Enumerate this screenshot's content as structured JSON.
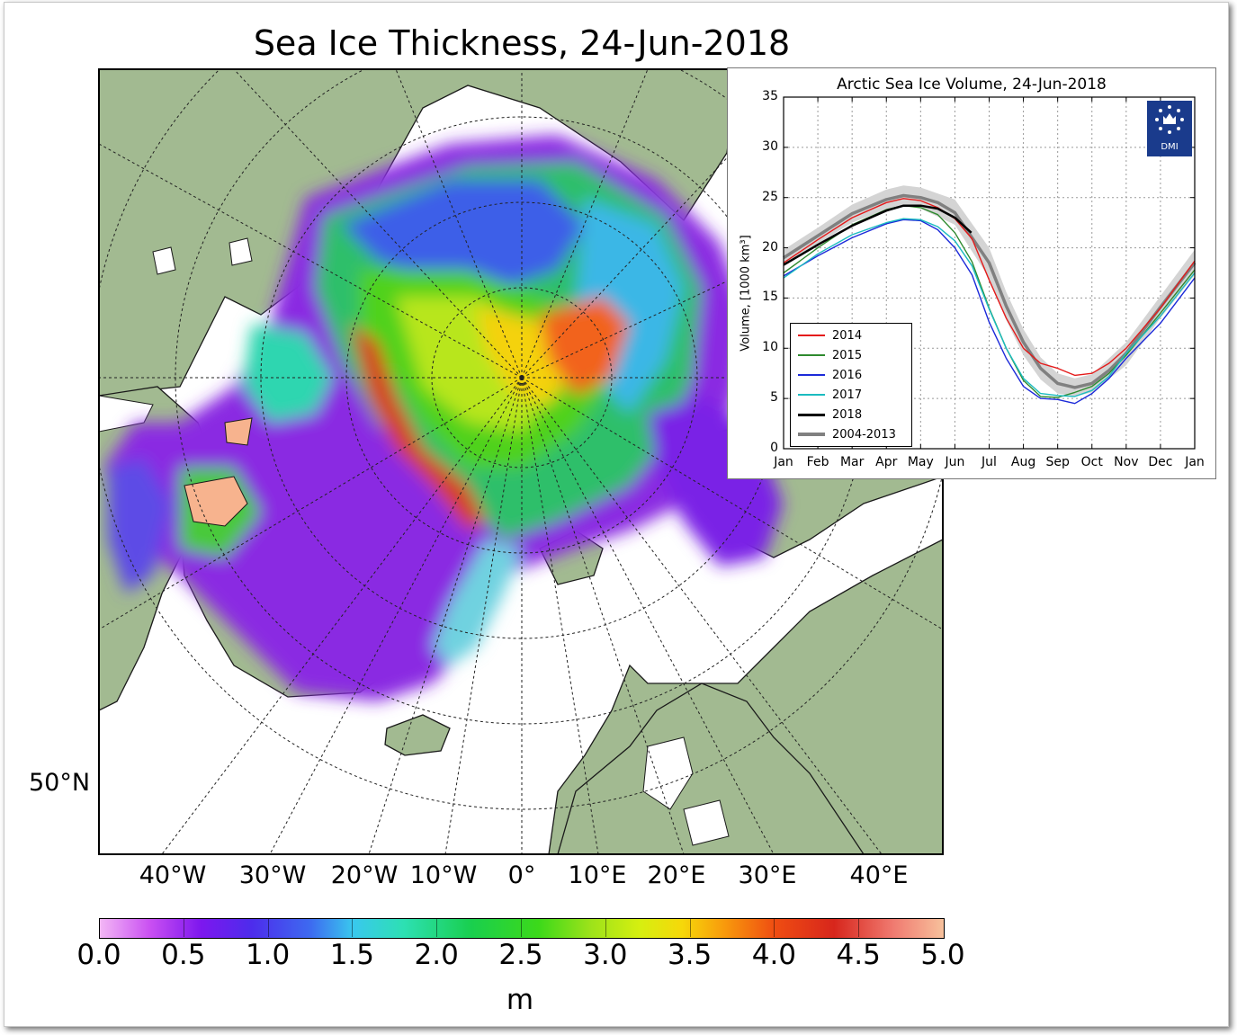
{
  "map": {
    "title": "Sea Ice Thickness, 24-Jun-2018",
    "longitude_labels": [
      "40°W",
      "30°W",
      "20°W",
      "10°W",
      "0°",
      "10°E",
      "20°E",
      "30°E",
      "40°E"
    ],
    "latitude_label": "50°N",
    "colors": {
      "land": "#a2ba91",
      "ocean": "#ffffff"
    }
  },
  "colorbar": {
    "ticks": [
      "0.0",
      "0.5",
      "1.0",
      "1.5",
      "2.0",
      "2.5",
      "3.0",
      "3.5",
      "4.0",
      "4.5",
      "5.0"
    ],
    "unit": "m"
  },
  "chart_data": {
    "type": "line",
    "title": "Arctic Sea Ice Volume, 24-Jun-2018",
    "xlabel": "",
    "ylabel": "Volume, [1000 km³]",
    "x_ticks": [
      "Jan",
      "Feb",
      "Mar",
      "Apr",
      "May",
      "Jun",
      "Jul",
      "Aug",
      "Sep",
      "Oct",
      "Nov",
      "Dec",
      "Jan"
    ],
    "y_ticks": [
      "0",
      "5",
      "10",
      "15",
      "20",
      "25",
      "30",
      "35"
    ],
    "ylim": [
      0,
      35
    ],
    "xlim": [
      0,
      12
    ],
    "grid": true,
    "legend_position": "lower-left",
    "logo_text": "DMI",
    "band": {
      "name": "2004-2013",
      "x": [
        0,
        1,
        2,
        3,
        3.5,
        4,
        5,
        6,
        6.5,
        7,
        7.5,
        8,
        8.5,
        9,
        10,
        11,
        12
      ],
      "lower": [
        18.2,
        20.4,
        22.5,
        23.8,
        24.2,
        23.9,
        22.3,
        17.0,
        12.8,
        9.3,
        6.9,
        5.5,
        5.2,
        5.6,
        8.3,
        13.0,
        17.3
      ],
      "upper": [
        19.8,
        22.0,
        24.3,
        25.8,
        26.2,
        26.0,
        24.8,
        20.0,
        15.6,
        11.9,
        9.1,
        7.5,
        7.0,
        7.4,
        10.6,
        15.2,
        19.8
      ]
    },
    "series": [
      {
        "name": "2014",
        "color": "#e41a1a",
        "x": [
          0,
          1,
          2,
          3,
          3.5,
          4,
          4.5,
          5,
          5.5,
          6,
          6.5,
          7,
          7.5,
          8,
          8.5,
          9,
          9.5,
          10,
          11,
          12
        ],
        "values": [
          18.5,
          20.8,
          23.0,
          24.5,
          24.9,
          24.7,
          24.0,
          22.9,
          20.9,
          16.8,
          13.0,
          10.0,
          8.5,
          8.0,
          7.3,
          7.5,
          8.5,
          10.0,
          14.0,
          18.7
        ]
      },
      {
        "name": "2015",
        "color": "#2e8a2e",
        "x": [
          0,
          1,
          2,
          3,
          3.5,
          4,
          4.5,
          5,
          5.5,
          6,
          6.5,
          7,
          7.5,
          8,
          8.5,
          9,
          9.5,
          10,
          11,
          12
        ],
        "values": [
          17.5,
          20.0,
          22.3,
          23.8,
          24.2,
          24.0,
          23.3,
          21.5,
          18.6,
          14.0,
          10.0,
          6.8,
          5.2,
          5.1,
          5.6,
          6.2,
          7.5,
          9.3,
          13.5,
          17.8
        ]
      },
      {
        "name": "2016",
        "color": "#1c2ad9",
        "x": [
          0,
          1,
          2,
          3,
          3.5,
          4,
          4.5,
          5,
          5.5,
          6,
          6.5,
          7,
          7.5,
          8,
          8.5,
          9,
          9.5,
          10,
          11,
          12
        ],
        "values": [
          17.2,
          19.2,
          21.0,
          22.4,
          22.8,
          22.7,
          21.8,
          20.0,
          17.3,
          12.6,
          9.0,
          6.2,
          5.0,
          4.9,
          4.5,
          5.5,
          7.0,
          9.0,
          12.5,
          17.0
        ]
      },
      {
        "name": "2017",
        "color": "#1bbcc0",
        "x": [
          0,
          1,
          2,
          3,
          3.5,
          4,
          4.5,
          5,
          5.5,
          6,
          6.5,
          7,
          7.5,
          8,
          8.5,
          9,
          9.5,
          10,
          11,
          12
        ],
        "values": [
          17.0,
          19.4,
          21.3,
          22.5,
          22.9,
          22.8,
          22.1,
          20.7,
          18.2,
          13.9,
          10.0,
          7.0,
          5.5,
          5.3,
          5.2,
          5.8,
          7.2,
          9.5,
          13.2,
          17.5
        ]
      },
      {
        "name": "2018",
        "color": "#000000",
        "x": [
          0,
          1,
          2,
          3,
          3.5,
          4,
          4.5,
          5,
          5.48
        ],
        "values": [
          18.3,
          20.3,
          22.2,
          23.7,
          24.2,
          24.2,
          23.9,
          23.0,
          21.5
        ]
      },
      {
        "name": "2004-2013",
        "color": "#808080",
        "x": [
          0,
          1,
          2,
          3,
          3.5,
          4,
          4.5,
          5,
          5.5,
          6,
          6.5,
          7,
          7.5,
          8,
          8.5,
          9,
          9.5,
          10,
          11,
          12
        ],
        "values": [
          19.0,
          21.2,
          23.4,
          24.8,
          25.2,
          25.0,
          24.5,
          23.5,
          21.0,
          18.5,
          14.2,
          10.6,
          8.0,
          6.5,
          6.1,
          6.5,
          7.8,
          9.5,
          14.1,
          18.5
        ]
      }
    ]
  }
}
